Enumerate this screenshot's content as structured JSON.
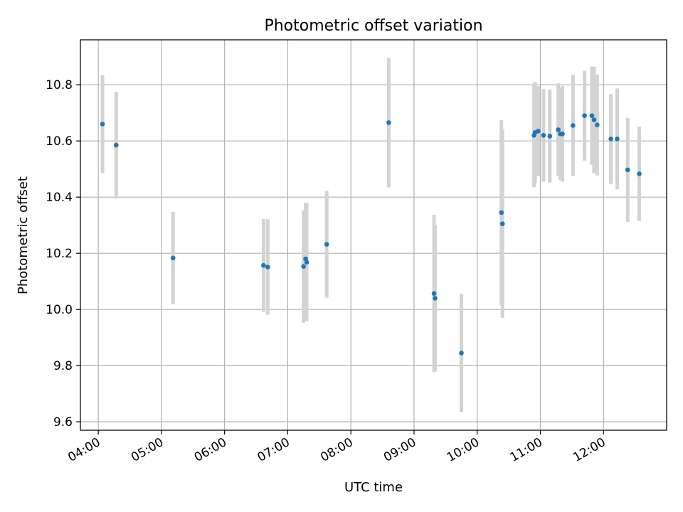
{
  "chart_data": {
    "type": "scatter",
    "title": "Photometric offset variation",
    "xlabel": "UTC time",
    "ylabel": "Photometric offset",
    "xlim": [
      "03:43",
      "13:00"
    ],
    "ylim": [
      9.57,
      10.96
    ],
    "grid": true,
    "x_ticks": [
      "04:00",
      "05:00",
      "06:00",
      "07:00",
      "08:00",
      "09:00",
      "10:00",
      "11:00",
      "12:00"
    ],
    "y_ticks": [
      9.6,
      9.8,
      10.0,
      10.2,
      10.4,
      10.6,
      10.8
    ],
    "y_tick_labels": [
      "9.6",
      "9.8",
      "10.0",
      "10.2",
      "10.4",
      "10.6",
      "10.8"
    ],
    "colors": {
      "point": "#1f77b4",
      "errorbar": "#d3d3d3",
      "grid": "#b0b0b0"
    },
    "series": [
      {
        "points": [
          {
            "x": "04:04",
            "y": 10.66,
            "err": 0.175
          },
          {
            "x": "04:17",
            "y": 10.585,
            "err": 0.19
          },
          {
            "x": "05:11",
            "y": 10.183,
            "err": 0.165
          },
          {
            "x": "06:37",
            "y": 10.157,
            "err": 0.165
          },
          {
            "x": "06:41",
            "y": 10.151,
            "err": 0.17
          },
          {
            "x": "07:15",
            "y": 10.153,
            "err": 0.2
          },
          {
            "x": "07:17",
            "y": 10.18,
            "err": 0.2
          },
          {
            "x": "07:18",
            "y": 10.168,
            "err": 0.21
          },
          {
            "x": "07:37",
            "y": 10.232,
            "err": 0.19
          },
          {
            "x": "08:36",
            "y": 10.665,
            "err": 0.23
          },
          {
            "x": "09:19",
            "y": 10.057,
            "err": 0.28
          },
          {
            "x": "09:20",
            "y": 10.04,
            "err": 0.26
          },
          {
            "x": "09:45",
            "y": 9.845,
            "err": 0.21
          },
          {
            "x": "10:23",
            "y": 10.345,
            "err": 0.33
          },
          {
            "x": "10:24",
            "y": 10.305,
            "err": 0.335
          },
          {
            "x": "10:54",
            "y": 10.62,
            "err": 0.185
          },
          {
            "x": "10:55",
            "y": 10.63,
            "err": 0.18
          },
          {
            "x": "10:58",
            "y": 10.635,
            "err": 0.16
          },
          {
            "x": "11:03",
            "y": 10.62,
            "err": 0.165
          },
          {
            "x": "11:09",
            "y": 10.617,
            "err": 0.165
          },
          {
            "x": "11:17",
            "y": 10.64,
            "err": 0.165
          },
          {
            "x": "11:19",
            "y": 10.625,
            "err": 0.165
          },
          {
            "x": "11:21",
            "y": 10.625,
            "err": 0.17
          },
          {
            "x": "11:31",
            "y": 10.655,
            "err": 0.18
          },
          {
            "x": "11:42",
            "y": 10.69,
            "err": 0.16
          },
          {
            "x": "11:49",
            "y": 10.69,
            "err": 0.175
          },
          {
            "x": "11:51",
            "y": 10.675,
            "err": 0.19
          },
          {
            "x": "11:54",
            "y": 10.657,
            "err": 0.18
          },
          {
            "x": "12:07",
            "y": 10.607,
            "err": 0.16
          },
          {
            "x": "12:13",
            "y": 10.607,
            "err": 0.18
          },
          {
            "x": "12:23",
            "y": 10.497,
            "err": 0.185
          },
          {
            "x": "12:34",
            "y": 10.483,
            "err": 0.168
          }
        ]
      }
    ]
  }
}
